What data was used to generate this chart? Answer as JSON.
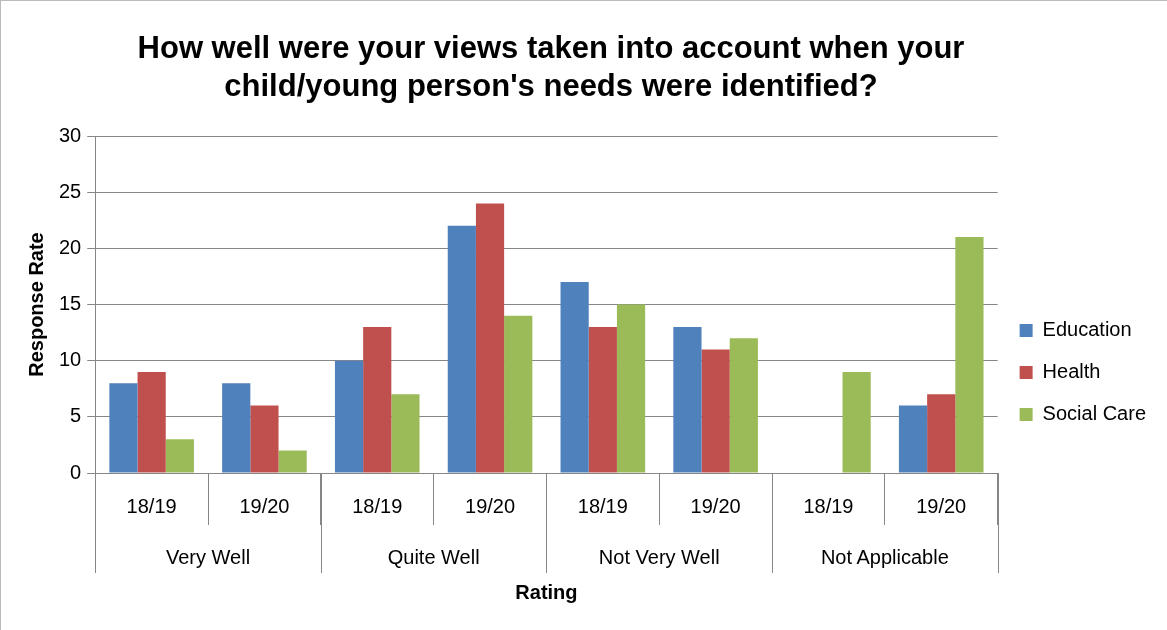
{
  "chart_data": {
    "type": "bar",
    "title": "How well were your views taken into account when your child/young person's needs were identified?",
    "xlabel": "Rating",
    "ylabel": "Response Rate",
    "categories": [
      "18/19",
      "19/20",
      "18/19",
      "19/20",
      "18/19",
      "19/20",
      "18/19",
      "19/20"
    ],
    "annotations": [
      "Very Well",
      "Quite Well",
      "Not Very Well",
      "Not Applicable"
    ],
    "series": [
      {
        "name": "Education",
        "color": "#4f81bd",
        "values": [
          8,
          8,
          10,
          22,
          17,
          13,
          null,
          6
        ]
      },
      {
        "name": "Health",
        "color": "#c0504d",
        "values": [
          9,
          6,
          13,
          24,
          13,
          11,
          null,
          7
        ]
      },
      {
        "name": "Social Care",
        "color": "#9bbb59",
        "values": [
          3,
          2,
          7,
          14,
          15,
          12,
          9,
          21
        ]
      }
    ],
    "ylim": [
      0,
      30
    ],
    "yticks": [
      0,
      5,
      10,
      15,
      20,
      25,
      30
    ],
    "grid": "y",
    "legend": "right"
  }
}
